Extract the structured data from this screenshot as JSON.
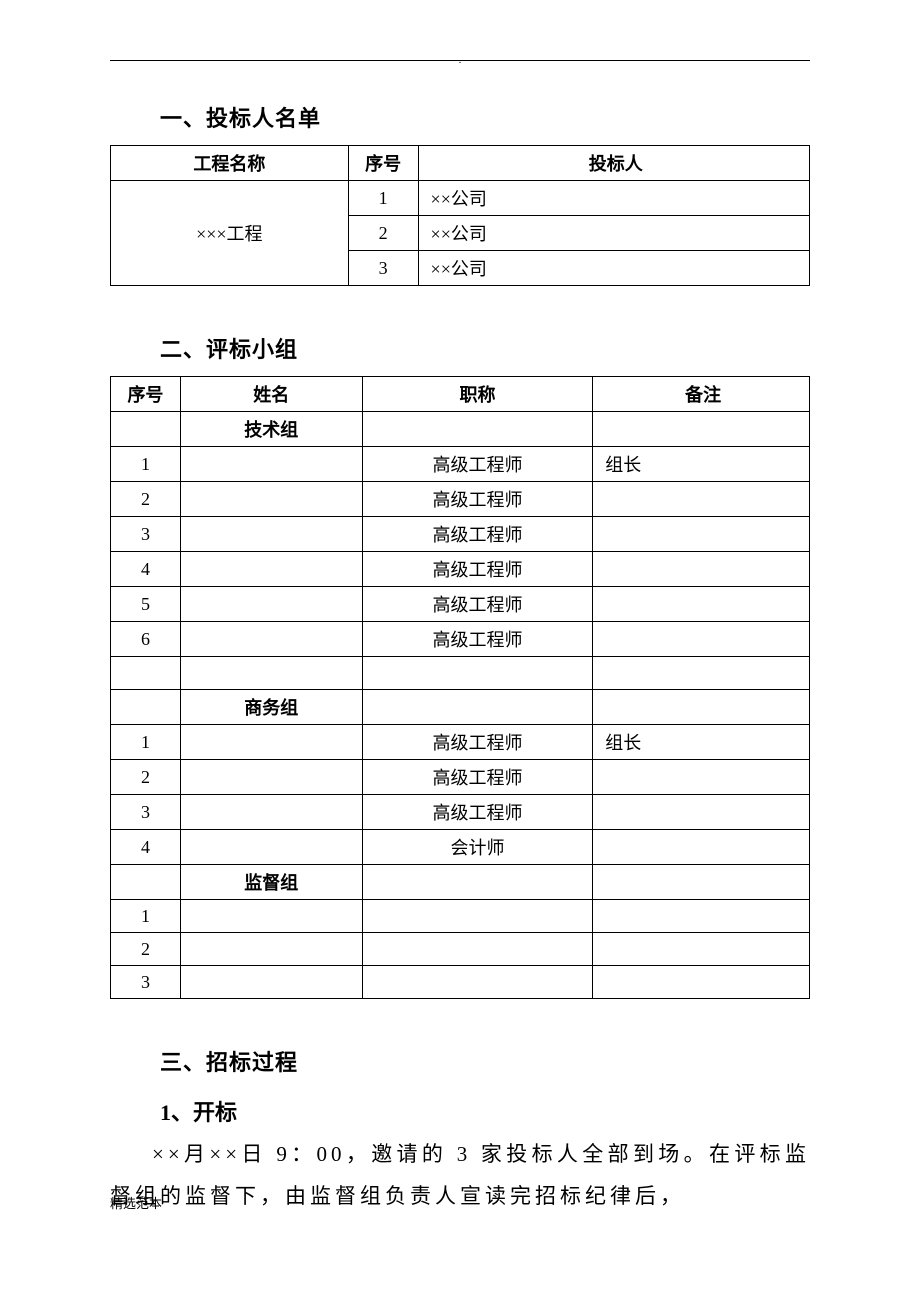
{
  "colors": {
    "text": "#000000",
    "border": "#000000",
    "background": "#ffffff"
  },
  "typography": {
    "body_font": "SimSun",
    "heading_fontsize": 22,
    "table_fontsize": 18,
    "body_fontsize": 21
  },
  "section1": {
    "heading": "一、投标人名单",
    "columns": [
      "工程名称",
      "序号",
      "投标人"
    ],
    "project_name": "×××工程",
    "rows": [
      {
        "seq": "1",
        "bidder": "××公司"
      },
      {
        "seq": "2",
        "bidder": "××公司"
      },
      {
        "seq": "3",
        "bidder": "××公司"
      }
    ]
  },
  "section2": {
    "heading": "二、评标小组",
    "columns": [
      "序号",
      "姓名",
      "职称",
      "备注"
    ],
    "groups": {
      "tech": {
        "label": "技术组",
        "rows": [
          {
            "seq": "1",
            "name": "",
            "title": "高级工程师",
            "note": "组长"
          },
          {
            "seq": "2",
            "name": "",
            "title": "高级工程师",
            "note": ""
          },
          {
            "seq": "3",
            "name": "",
            "title": "高级工程师",
            "note": ""
          },
          {
            "seq": "4",
            "name": "",
            "title": "高级工程师",
            "note": ""
          },
          {
            "seq": "5",
            "name": "",
            "title": "高级工程师",
            "note": ""
          },
          {
            "seq": "6",
            "name": "",
            "title": "高级工程师",
            "note": ""
          }
        ]
      },
      "biz": {
        "label": "商务组",
        "rows": [
          {
            "seq": "1",
            "name": "",
            "title": "高级工程师",
            "note": "组长"
          },
          {
            "seq": "2",
            "name": "",
            "title": "高级工程师",
            "note": ""
          },
          {
            "seq": "3",
            "name": "",
            "title": "高级工程师",
            "note": ""
          },
          {
            "seq": "4",
            "name": "",
            "title": "会计师",
            "note": ""
          }
        ]
      },
      "sup": {
        "label": "监督组",
        "rows": [
          {
            "seq": "1",
            "name": "",
            "title": "",
            "note": ""
          },
          {
            "seq": "2",
            "name": "",
            "title": "",
            "note": ""
          },
          {
            "seq": "3",
            "name": "",
            "title": "",
            "note": ""
          }
        ]
      }
    }
  },
  "section3": {
    "heading": "三、招标过程",
    "sub1": "1、开标",
    "paragraph": "××月××日 9：00，邀请的 3 家投标人全部到场。在评标监督组的监督下，由监督组负责人宣读完招标纪律后，"
  },
  "footer": "精选范本"
}
